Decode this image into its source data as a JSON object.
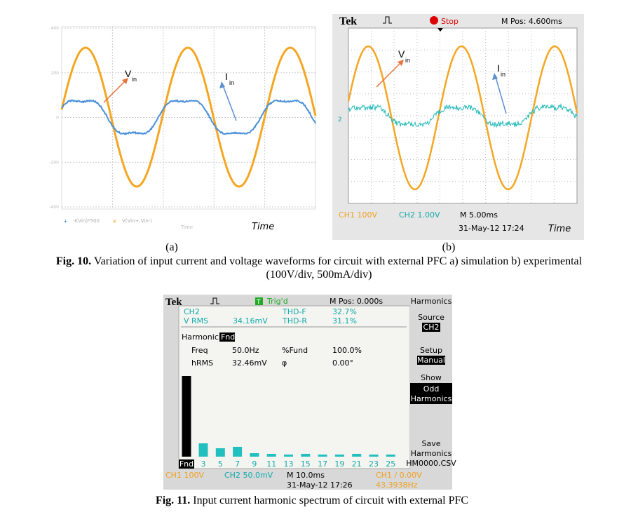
{
  "fig10": {
    "sim": {
      "yticks": [
        400,
        200,
        0,
        -200,
        -400
      ],
      "legend": [
        "-I(Vin)*500",
        "V(Vin+,Vin-)"
      ],
      "axis_label": "Time",
      "time_label": "Time",
      "vin": "V",
      "vin_sub": "in",
      "iin": "I",
      "iin_sub": "in",
      "panel": "(a)"
    },
    "scope": {
      "brand": "Tek",
      "status": "Stop",
      "mpos": "M Pos: 4.600ms",
      "ch_marker": "2",
      "ch1": "CH1 100V",
      "ch2": "CH2 1.00V",
      "timebase": "M 5.00ms",
      "date": "31-May-12 17:24",
      "time_label": "Time",
      "vin": "V",
      "vin_sub": "in",
      "iin": "I",
      "iin_sub": "in",
      "panel": "(b)"
    },
    "caption": {
      "label": "Fig. 10.",
      "text": "Variation of input current and voltage waveforms for circuit with external PFC a) simulation b) experimental",
      "text_line2": "(100V/div, 500mA/div)"
    }
  },
  "fig11": {
    "scope": {
      "brand": "Tek",
      "status_icon": "T",
      "status": "Trig'd",
      "mpos": "M Pos: 0.000s",
      "menu_title": "Harmonics",
      "channel": "CH2",
      "vrms_label": "V RMS",
      "vrms": "34.16mV",
      "thdf_label": "THD-F",
      "thdf": "32.7%",
      "thdr_label": "THD-R",
      "thdr": "31.1%",
      "harmonic_label": "Harmonic",
      "harmonic": "Fnd",
      "freq_label": "Freq",
      "freq": "50.0Hz",
      "fund_label": "%Fund",
      "fund": "100.0%",
      "hrms_label": "hRMS",
      "hrms": "32.46mV",
      "phi_label": "φ",
      "phi": "0.00°",
      "source_label": "Source",
      "source": "CH2",
      "setup_label": "Setup",
      "setup": "Manual",
      "show_label": "Show",
      "show": [
        "Odd",
        "Harmonics"
      ],
      "save": [
        "Save",
        "Harmonics"
      ],
      "save_file": "HM0000.CSV",
      "ch1": "CH1 100V",
      "ch2": "CH2 50.0mV",
      "timebase": "M 10.0ms",
      "trigger": "CH1 ∕ 0.00V",
      "date": "31-May-12 17:26",
      "trigger_freq": "43.3938Hz"
    },
    "spectrum": {
      "type": "bar",
      "categories": [
        "Fnd",
        "3",
        "5",
        "7",
        "9",
        "11",
        "13",
        "15",
        "17",
        "19",
        "21",
        "23",
        "25"
      ],
      "values": [
        100,
        16.5,
        10.4,
        12.2,
        4.3,
        3.5,
        2.6,
        3.5,
        2.6,
        2.6,
        3.5,
        2.6,
        2.6
      ],
      "ylim": [
        0,
        100
      ],
      "color": "#22bfbf",
      "fundamental_color": "#000000"
    },
    "caption": {
      "label": "Fig. 11.",
      "text": "Input current harmonic spectrum of circuit with external PFC"
    }
  }
}
